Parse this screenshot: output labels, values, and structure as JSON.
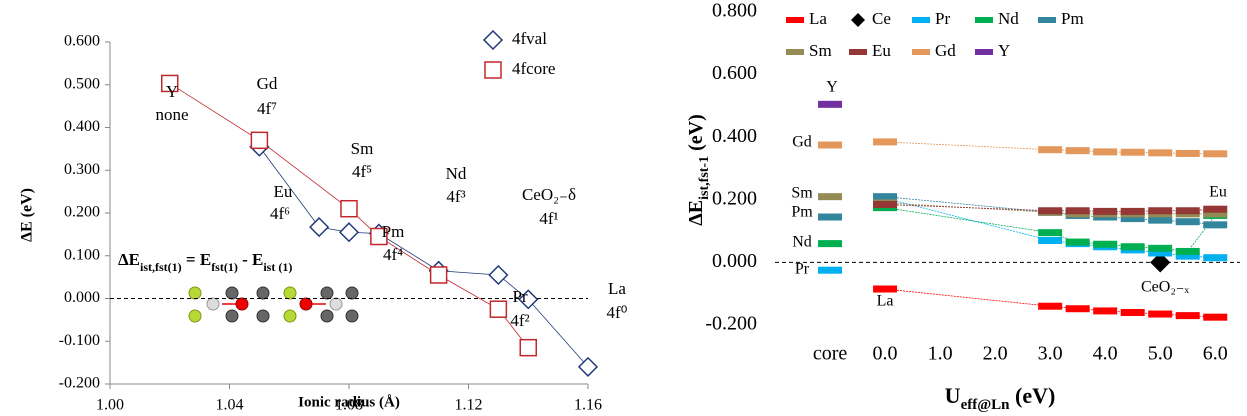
{
  "chart_data": [
    {
      "type": "scatter",
      "y_label": "ΔE (eV)",
      "x_label": "Ionic radius (Å)",
      "equation": [
        "ΔE",
        "ist,fst(1)",
        " = E",
        "fst(1)",
        " - E",
        "ist (1)"
      ],
      "xlim": [
        1.0,
        1.16
      ],
      "ylim": [
        -0.2,
        0.6
      ],
      "xticks": [
        {
          "value": 1.0,
          "label": "1.00"
        },
        1.04,
        1.08,
        1.12,
        1.16
      ],
      "yticks": [
        {
          "value": -0.2,
          "label": "-0.200"
        },
        {
          "value": -0.1,
          "label": "-0.100"
        },
        {
          "value": 0,
          "label": "0.000"
        },
        {
          "value": 0.1,
          "label": "0.100"
        },
        {
          "value": 0.2,
          "label": "0.200"
        },
        {
          "value": 0.3,
          "label": "0.300"
        },
        {
          "value": 0.4,
          "label": "0.400"
        },
        {
          "value": 0.5,
          "label": "0.500"
        },
        {
          "value": 0.6,
          "label": "0.600"
        }
      ],
      "frame": true,
      "zero_line": true,
      "legend": "top-right",
      "series": [
        {
          "name": "4fval",
          "color": "#1f3a7a",
          "marker": "diamond",
          "x": [
            1.05,
            1.07,
            1.08,
            1.09,
            1.11,
            1.13,
            1.14,
            1.16
          ],
          "values": [
            0.355,
            0.167,
            0.155,
            0.152,
            0.065,
            0.055,
            -0.002,
            -0.16
          ]
        },
        {
          "name": "4fcore",
          "color": "#c0282d",
          "marker": "square",
          "x": [
            1.02,
            1.05,
            1.08,
            1.09,
            1.11,
            1.13,
            1.14
          ],
          "values": [
            0.503,
            0.37,
            0.21,
            0.145,
            0.055,
            -0.025,
            -0.115
          ]
        }
      ],
      "annotations": [
        "Gd",
        "4f⁷",
        "Y",
        "none",
        "Sm",
        "4f⁵",
        "Eu",
        "4f⁶",
        "Pm",
        "4f⁴",
        "Nd",
        "4f³",
        "CeO₂₋δ",
        "4f¹",
        "Pr",
        "4f²",
        "La",
        "4f⁰"
      ]
    },
    {
      "type": "line",
      "y_label": [
        "ΔE",
        "ist,fst-1",
        " (eV)"
      ],
      "x_label": [
        "U",
        "eff@Ln",
        " (eV)"
      ],
      "xlim": [
        -2,
        6.45
      ],
      "ylim": [
        -0.2,
        0.8
      ],
      "xticks": [
        {
          "value": -1,
          "label": "core"
        },
        {
          "value": 0,
          "label": "0.0"
        },
        {
          "value": 1,
          "label": "1.0"
        },
        {
          "value": 2,
          "label": "2.0"
        },
        {
          "value": 3,
          "label": "3.0"
        },
        {
          "value": 4,
          "label": "4.0"
        },
        {
          "value": 5,
          "label": "5.0"
        },
        {
          "value": 6,
          "label": "6.0"
        }
      ],
      "yticks": [
        {
          "value": -0.2,
          "label": "-0.200"
        },
        {
          "value": 0,
          "label": "0.000"
        },
        {
          "value": 0.2,
          "label": "0.200"
        },
        {
          "value": 0.4,
          "label": "0.400"
        },
        {
          "value": 0.6,
          "label": "0.600"
        },
        {
          "value": 0.8,
          "label": "0.800"
        }
      ],
      "frame": false,
      "zero_line": true,
      "legend": "top",
      "x": [
        0,
        3,
        3.5,
        4,
        4.5,
        5,
        5.5,
        6
      ],
      "series": [
        {
          "name": "La",
          "color": "#ff0000",
          "marker": "dash",
          "core": null,
          "values": [
            -0.085,
            -0.14,
            -0.148,
            -0.155,
            -0.16,
            -0.165,
            -0.17,
            -0.175
          ]
        },
        {
          "name": "Ce",
          "color": "#000000",
          "marker": "diamond",
          "core": null,
          "values": [
            null,
            null,
            null,
            null,
            null,
            0.0,
            null,
            null
          ]
        },
        {
          "name": "Pr",
          "color": "#00b0f0",
          "marker": "dash",
          "core": -0.025,
          "values": [
            0.205,
            0.07,
            0.06,
            0.05,
            0.04,
            0.03,
            0.02,
            0.015
          ]
        },
        {
          "name": "Nd",
          "color": "#00b050",
          "marker": "dash",
          "core": 0.06,
          "values": [
            0.175,
            0.095,
            0.065,
            0.058,
            0.05,
            0.045,
            0.035,
            0.15
          ]
        },
        {
          "name": "Pm",
          "color": "#31859c",
          "marker": "dash",
          "core": 0.145,
          "values": [
            0.21,
            0.16,
            0.15,
            0.145,
            0.14,
            0.135,
            0.13,
            0.12
          ]
        },
        {
          "name": "Sm",
          "color": "#948a54",
          "marker": "dash",
          "core": 0.21,
          "values": [
            0.19,
            0.16,
            0.155,
            0.155,
            0.155,
            0.155,
            0.155,
            0.155
          ]
        },
        {
          "name": "Eu",
          "color": "#953735",
          "marker": "dash",
          "core": null,
          "values": [
            0.185,
            0.165,
            0.165,
            0.163,
            0.163,
            0.165,
            0.165,
            0.17
          ]
        },
        {
          "name": "Gd",
          "color": "#e4975a",
          "marker": "dash",
          "core": 0.375,
          "values": [
            0.385,
            0.36,
            0.357,
            0.353,
            0.352,
            0.35,
            0.348,
            0.347
          ]
        },
        {
          "name": "Y",
          "color": "#7030a0",
          "marker": "dash",
          "core": 0.505,
          "values": [
            null,
            null,
            null,
            null,
            null,
            null,
            null,
            null
          ]
        }
      ],
      "annotations": [
        "Y",
        "Gd",
        "Sm",
        "Pm",
        "Nd",
        "Pr",
        "La",
        "Eu",
        "CeO₂₋ₓ"
      ]
    }
  ]
}
